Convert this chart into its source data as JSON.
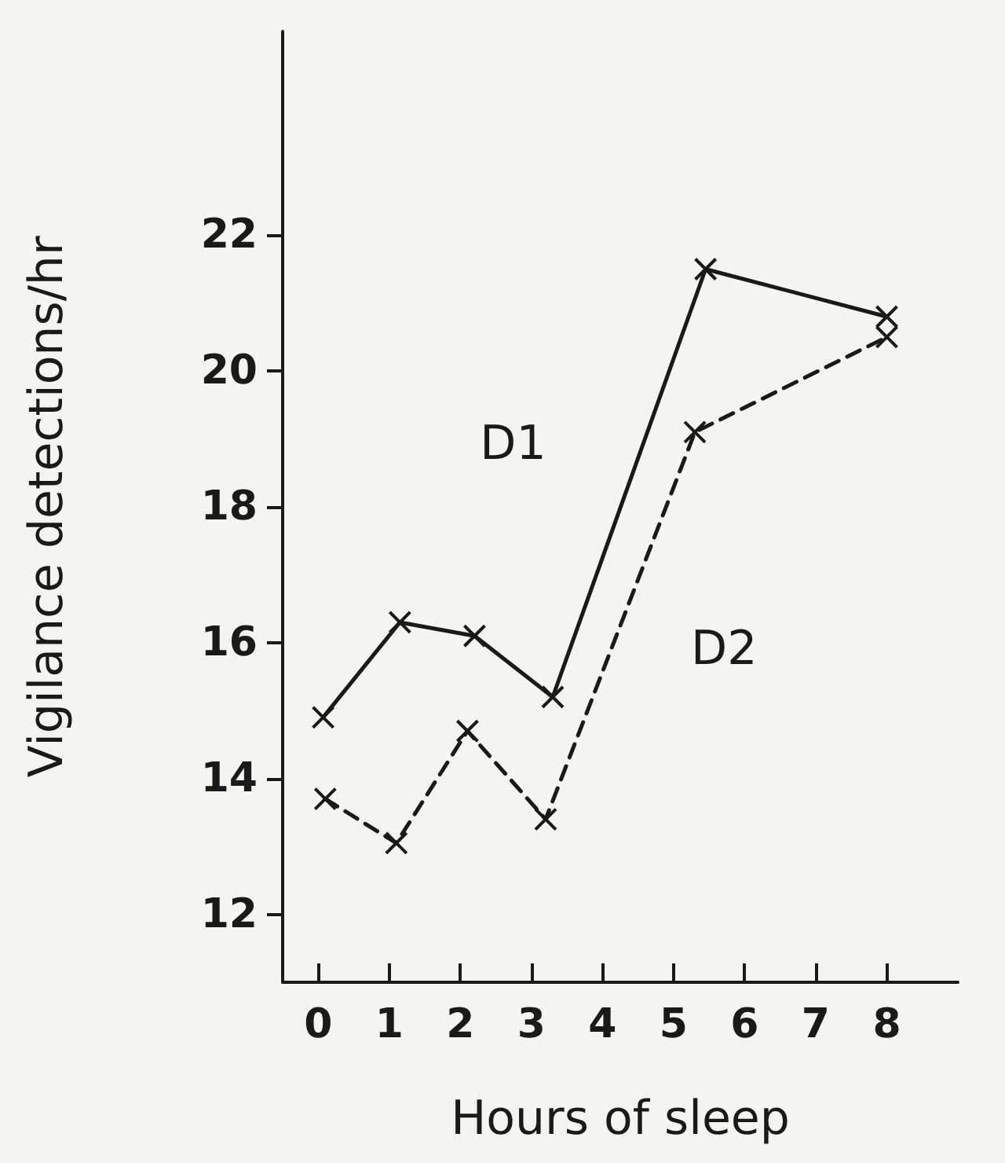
{
  "chart_data": {
    "type": "line",
    "xlabel": "Hours of sleep",
    "ylabel": "Vigilance detections/hr",
    "xlim": [
      -0.5,
      9
    ],
    "xticks": [
      0,
      1,
      2,
      3,
      4,
      5,
      6,
      7,
      8
    ],
    "ylim": [
      11,
      25
    ],
    "yticks": [
      12,
      14,
      16,
      18,
      20,
      22
    ],
    "grid": false,
    "legend": false,
    "marker": "cross",
    "series": [
      {
        "name": "D1",
        "color": "#1a1a1a",
        "line_style": "solid",
        "x": [
          0.07,
          1.15,
          2.2,
          3.3,
          5.45,
          8
        ],
        "values": [
          14.9,
          16.3,
          16.1,
          15.2,
          21.5,
          20.8
        ]
      },
      {
        "name": "D2",
        "color": "#1a1a1a",
        "line_style": "dashed",
        "x": [
          0.1,
          1.1,
          2.1,
          3.2,
          5.3,
          8
        ],
        "values": [
          13.7,
          13.05,
          14.7,
          13.4,
          19.1,
          20.5
        ]
      }
    ]
  }
}
